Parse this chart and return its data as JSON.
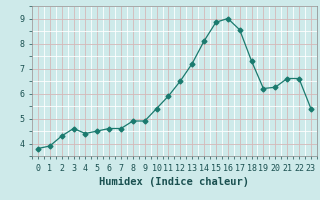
{
  "x": [
    0,
    1,
    2,
    3,
    4,
    5,
    6,
    7,
    8,
    9,
    10,
    11,
    12,
    13,
    14,
    15,
    16,
    17,
    18,
    19,
    20,
    21,
    22,
    23
  ],
  "y": [
    3.8,
    3.9,
    4.3,
    4.6,
    4.4,
    4.5,
    4.6,
    4.6,
    4.9,
    4.9,
    5.4,
    5.9,
    6.5,
    7.2,
    8.1,
    8.85,
    9.0,
    8.55,
    7.3,
    6.2,
    6.25,
    6.6,
    6.6,
    5.4
  ],
  "xlabel": "Humidex (Indice chaleur)",
  "ylim": [
    3.5,
    9.5
  ],
  "xlim": [
    -0.5,
    23.5
  ],
  "line_color": "#1a7a6e",
  "marker": "D",
  "marker_size": 2.5,
  "bg_color": "#ceeaea",
  "grid_color_major": "#d4b8b8",
  "grid_color_minor": "#ffffff",
  "label_fontsize": 7.5,
  "tick_fontsize": 6.0
}
